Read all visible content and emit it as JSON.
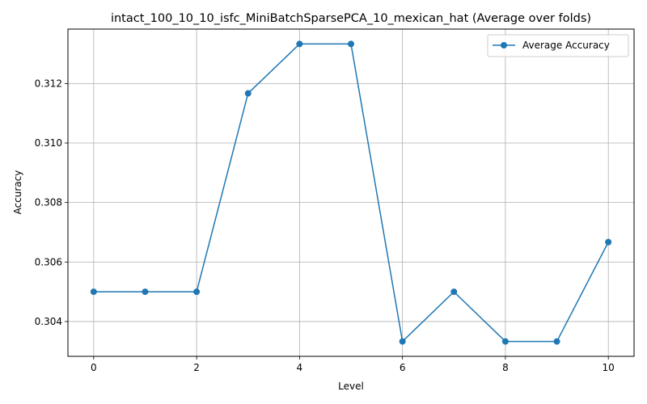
{
  "chart_data": {
    "type": "line",
    "title": "intact_100_10_10_isfc_MiniBatchSparsePCA_10_mexican_hat (Average over folds)",
    "xlabel": "Level",
    "ylabel": "Accuracy",
    "x": [
      0,
      1,
      2,
      3,
      4,
      5,
      6,
      7,
      8,
      9,
      10
    ],
    "series": [
      {
        "name": "Average Accuracy",
        "color": "#1f77b4",
        "marker": "circle",
        "values": [
          0.305,
          0.305,
          0.305,
          0.31167,
          0.31333,
          0.31333,
          0.30333,
          0.305,
          0.30333,
          0.30333,
          0.30667
        ]
      }
    ],
    "xlim": [
      -0.5,
      10.5
    ],
    "ylim": [
      0.30283,
      0.31383
    ],
    "xticks": [
      0,
      2,
      4,
      6,
      8,
      10
    ],
    "xtick_labels": [
      "0",
      "2",
      "4",
      "6",
      "8",
      "10"
    ],
    "yticks": [
      0.304,
      0.306,
      0.308,
      0.31,
      0.312
    ],
    "ytick_labels": [
      "0.304",
      "0.306",
      "0.308",
      "0.310",
      "0.312"
    ],
    "grid": true,
    "legend_position": "top-right"
  }
}
